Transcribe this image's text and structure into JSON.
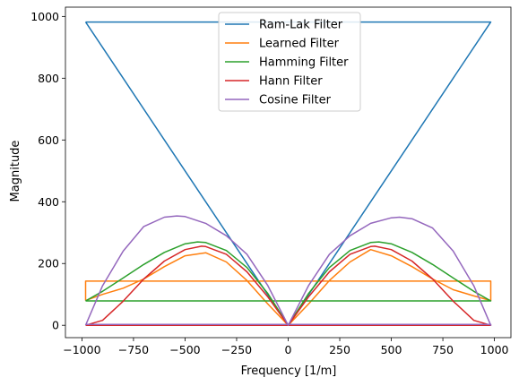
{
  "chart_data": {
    "type": "line",
    "title": "",
    "xlabel": "Frequency [1/m]",
    "ylabel": "Magnitude",
    "xlim": [
      -1080,
      1080
    ],
    "ylim": [
      -40,
      1030
    ],
    "xticks": [
      -1000,
      -750,
      -500,
      -250,
      0,
      250,
      500,
      750,
      1000
    ],
    "yticks": [
      0,
      200,
      400,
      600,
      800,
      1000
    ],
    "grid": false,
    "legend_position": "top-center",
    "series": [
      {
        "name": "Ram-Lak Filter",
        "color": "#1f77b4",
        "x": [
          -982,
          -800,
          -600,
          -400,
          -200,
          0,
          200,
          400,
          600,
          800,
          982,
          982,
          -982
        ],
        "y": [
          982,
          800,
          600,
          400,
          200,
          0,
          200,
          400,
          600,
          800,
          982,
          982,
          982
        ]
      },
      {
        "name": "Learned Filter",
        "color": "#ff7f0e",
        "x": [
          -982,
          -900,
          -800,
          -700,
          -600,
          -500,
          -400,
          -300,
          -200,
          -100,
          0,
          100,
          200,
          300,
          400,
          500,
          600,
          700,
          800,
          900,
          982,
          982,
          -982,
          -982
        ],
        "y": [
          80,
          100,
          120,
          150,
          190,
          225,
          235,
          205,
          145,
          70,
          0,
          70,
          145,
          205,
          245,
          225,
          190,
          150,
          115,
          95,
          80,
          143,
          143,
          80
        ]
      },
      {
        "name": "Hamming Filter",
        "color": "#2ca02c",
        "x": [
          -982,
          -900,
          -800,
          -700,
          -600,
          -500,
          -440,
          -400,
          -300,
          -200,
          -100,
          0,
          100,
          200,
          300,
          400,
          440,
          500,
          600,
          700,
          800,
          900,
          982,
          982,
          -982
        ],
        "y": [
          79,
          110,
          153,
          197,
          236,
          264,
          270,
          268,
          242,
          187,
          104,
          0,
          104,
          187,
          242,
          268,
          270,
          264,
          236,
          197,
          153,
          110,
          79,
          79,
          79
        ]
      },
      {
        "name": "Hann Filter",
        "color": "#d62728",
        "x": [
          -982,
          -900,
          -800,
          -700,
          -600,
          -500,
          -420,
          -400,
          -300,
          -200,
          -100,
          0,
          100,
          200,
          300,
          400,
          420,
          500,
          600,
          700,
          800,
          900,
          982,
          982,
          -982
        ],
        "y": [
          0,
          16,
          78,
          150,
          208,
          245,
          256,
          255,
          230,
          173,
          93,
          0,
          93,
          173,
          230,
          255,
          256,
          245,
          208,
          150,
          78,
          16,
          0,
          0,
          0
        ]
      },
      {
        "name": "Cosine Filter",
        "color": "#9467bd",
        "x": [
          -982,
          -900,
          -800,
          -700,
          -600,
          -540,
          -500,
          -400,
          -300,
          -200,
          -100,
          0,
          100,
          200,
          300,
          400,
          500,
          540,
          600,
          700,
          800,
          900,
          982,
          982,
          -982
        ],
        "y": [
          0,
          128,
          240,
          320,
          350,
          354,
          352,
          330,
          290,
          230,
          130,
          0,
          130,
          230,
          290,
          330,
          348,
          350,
          345,
          315,
          240,
          128,
          0,
          3,
          3
        ]
      }
    ]
  }
}
